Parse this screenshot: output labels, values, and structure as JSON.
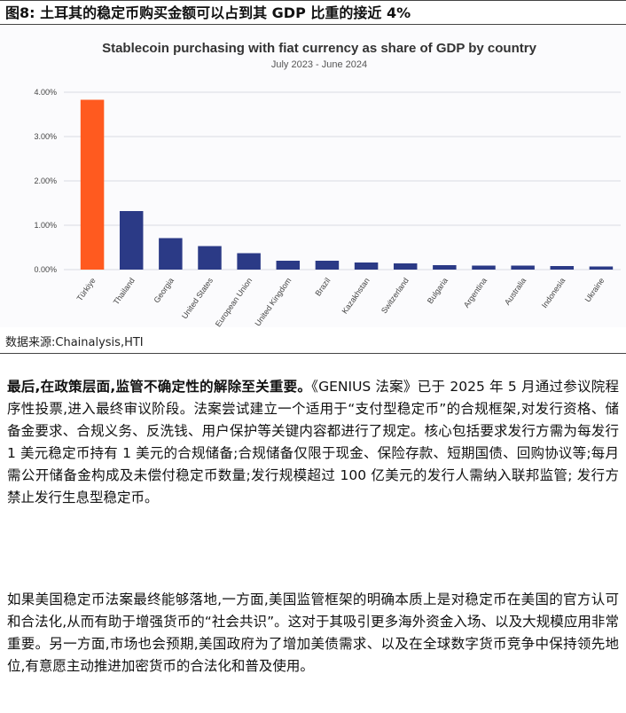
{
  "figure": {
    "title": "图8:  土耳其的稳定币购买金额可以占到其 GDP 比重的接近 4%",
    "source": "数据来源:Chainalysis,HTI"
  },
  "chart_data": {
    "type": "bar",
    "title": "Stablecoin purchasing with fiat currency as share of GDP by country",
    "subtitle": "July 2023 - June 2024",
    "categories": [
      "Türkiye",
      "Thailand",
      "Georgia",
      "United States",
      "European Union",
      "United Kingdom",
      "Brazil",
      "Kazakhstan",
      "Switzerland",
      "Bulgaria",
      "Argentina",
      "Australia",
      "Indonesia",
      "Ukraine"
    ],
    "values": [
      3.83,
      1.32,
      0.71,
      0.53,
      0.37,
      0.2,
      0.2,
      0.16,
      0.14,
      0.1,
      0.09,
      0.09,
      0.08,
      0.07
    ],
    "yticks": [
      "0.00%",
      "1.00%",
      "2.00%",
      "3.00%",
      "4.00%"
    ],
    "ylim": [
      0,
      4
    ],
    "grid": "horizontal",
    "colors": {
      "highlight": "#ff5a1f",
      "bar": "#2b3a86",
      "grid": "#d9dbe4"
    }
  },
  "body": {
    "p1_bold": "最后,在政策层面,监管不确定性的解除至关重要。",
    "p1_rest": "《GENIUS 法案》已于 2025 年 5 月通过参议院程序性投票,进入最终审议阶段。法案尝试建立一个适用于“支付型稳定币”的合规框架,对发行资格、储备金要求、合规义务、反洗钱、用户保护等关键内容都进行了规定。核心包括要求发行方需为每发行 1 美元稳定币持有 1 美元的合规储备;合规储备仅限于现金、保险存款、短期国债、回购协议等;每月需公开储备金构成及未偿付稳定币数量;发行规模超过 100 亿美元的发行人需纳入联邦监管; 发行方禁止发行生息型稳定币。",
    "p2": "如果美国稳定币法案最终能够落地,一方面,美国监管框架的明确本质上是对稳定币在美国的官方认可和合法化,从而有助于增强货币的“社会共识”。这对于其吸引更多海外资金入场、以及大规模应用非常重要。另一方面,市场也会预期,美国政府为了增加美债需求、以及在全球数字货币竞争中保持领先地位,有意愿主动推进加密货币的合法化和普及使用。"
  }
}
